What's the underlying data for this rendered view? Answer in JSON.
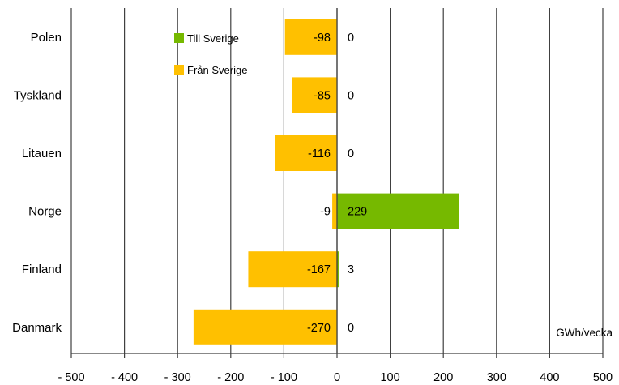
{
  "chart_data": {
    "type": "bar",
    "orientation": "horizontal",
    "categories": [
      "Polen",
      "Tyskland",
      "Litauen",
      "Norge",
      "Finland",
      "Danmark"
    ],
    "series": [
      {
        "name": "Till Sverige",
        "color": "#76b900",
        "values": [
          0,
          0,
          0,
          229,
          3,
          0
        ]
      },
      {
        "name": "Från Sverige",
        "color": "#ffc000",
        "values": [
          -98,
          -85,
          -116,
          -9,
          -167,
          -270
        ]
      }
    ],
    "xlim": [
      -500,
      500
    ],
    "xticks": [
      -500,
      -400,
      -300,
      -200,
      -100,
      0,
      100,
      200,
      300,
      400,
      500
    ],
    "xtick_labels": [
      "- 500",
      "- 400",
      "- 300",
      "- 200",
      "- 100",
      "0",
      "100",
      "200",
      "300",
      "400",
      "500"
    ],
    "unit_label": "GWh/vecka",
    "legend_position": "top-left",
    "grid": "vertical"
  }
}
